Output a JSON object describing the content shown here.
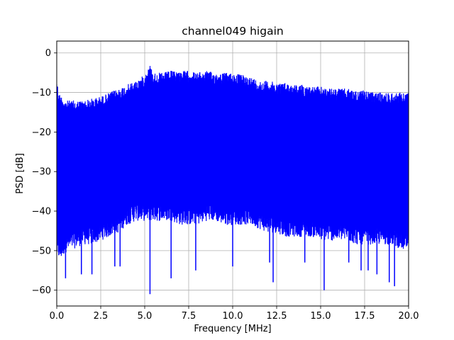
{
  "chart_data": {
    "type": "line",
    "title": "channel049 higain",
    "xlabel": "Frequency [MHz]",
    "ylabel": "PSD [dB]",
    "xlim": [
      0,
      20
    ],
    "ylim": [
      -64,
      3
    ],
    "xticks": [
      0.0,
      2.5,
      5.0,
      7.5,
      10.0,
      12.5,
      15.0,
      17.5,
      20.0
    ],
    "xtick_labels": [
      "0.0",
      "2.5",
      "5.0",
      "7.5",
      "10.0",
      "12.5",
      "15.0",
      "17.5",
      "20.0"
    ],
    "yticks": [
      0,
      -10,
      -20,
      -30,
      -40,
      -50,
      -60
    ],
    "ytick_labels": [
      "0",
      "−10",
      "−20",
      "−30",
      "−40",
      "−50",
      "−60"
    ],
    "grid": true,
    "line_color": "#0000ff",
    "series": [
      {
        "envelope_upper": {
          "x": [
            0.0,
            0.1,
            0.2,
            0.5,
            1.0,
            1.5,
            2.0,
            2.5,
            3.0,
            3.5,
            4.0,
            4.5,
            5.0,
            5.3,
            5.5,
            6.0,
            6.5,
            7.0,
            7.5,
            8.0,
            8.5,
            9.0,
            9.5,
            10.0,
            10.5,
            11.0,
            11.5,
            12.0,
            12.5,
            13.0,
            13.5,
            14.0,
            14.5,
            15.0,
            15.5,
            16.0,
            16.5,
            17.0,
            17.5,
            18.0,
            18.5,
            19.0,
            19.5,
            20.0
          ],
          "y": [
            -6,
            -10,
            -10.5,
            -12,
            -12,
            -12,
            -11.5,
            -11,
            -10,
            -9,
            -8,
            -7,
            -5.5,
            -3,
            -5,
            -5,
            -4.5,
            -4.5,
            -4.5,
            -5,
            -4.5,
            -5,
            -5,
            -5,
            -5.5,
            -6,
            -7,
            -7,
            -7.5,
            -7.5,
            -8,
            -8,
            -8.5,
            -8.5,
            -9,
            -9,
            -9,
            -9.5,
            -9.5,
            -10,
            -10,
            -10,
            -10,
            -10
          ]
        },
        "envelope_lower": {
          "x": [
            0.0,
            0.2,
            0.5,
            1.0,
            1.5,
            2.0,
            2.5,
            3.0,
            3.5,
            4.0,
            4.5,
            5.0,
            5.5,
            6.0,
            6.5,
            7.0,
            7.5,
            8.0,
            8.5,
            9.0,
            9.5,
            10.0,
            10.5,
            11.0,
            11.5,
            12.0,
            12.5,
            13.0,
            13.5,
            14.0,
            14.5,
            15.0,
            15.5,
            16.0,
            16.5,
            17.0,
            17.5,
            18.0,
            18.5,
            19.0,
            19.5,
            20.0
          ],
          "y": [
            -50,
            -51,
            -49,
            -48,
            -47,
            -47,
            -46,
            -45,
            -44,
            -42,
            -41,
            -41,
            -41,
            -41,
            -41,
            -42,
            -42,
            -42,
            -41,
            -41,
            -42,
            -42,
            -42,
            -42,
            -43,
            -44,
            -44,
            -45,
            -45,
            -45,
            -45,
            -46,
            -46,
            -46,
            -46,
            -47,
            -47,
            -47,
            -47,
            -47,
            -48,
            -49
          ]
        },
        "deep_dips": {
          "x": [
            0.5,
            1.4,
            2.0,
            3.3,
            3.6,
            5.3,
            6.5,
            7.9,
            10.0,
            12.1,
            12.3,
            14.1,
            15.2,
            16.6,
            17.3,
            17.7,
            18.2,
            18.9,
            19.2
          ],
          "y": [
            -57,
            -56,
            -56,
            -54,
            -54,
            -61,
            -57,
            -55,
            -54,
            -53,
            -58,
            -53,
            -60,
            -53,
            -55,
            -55,
            -56,
            -58,
            -59
          ]
        }
      }
    ]
  }
}
